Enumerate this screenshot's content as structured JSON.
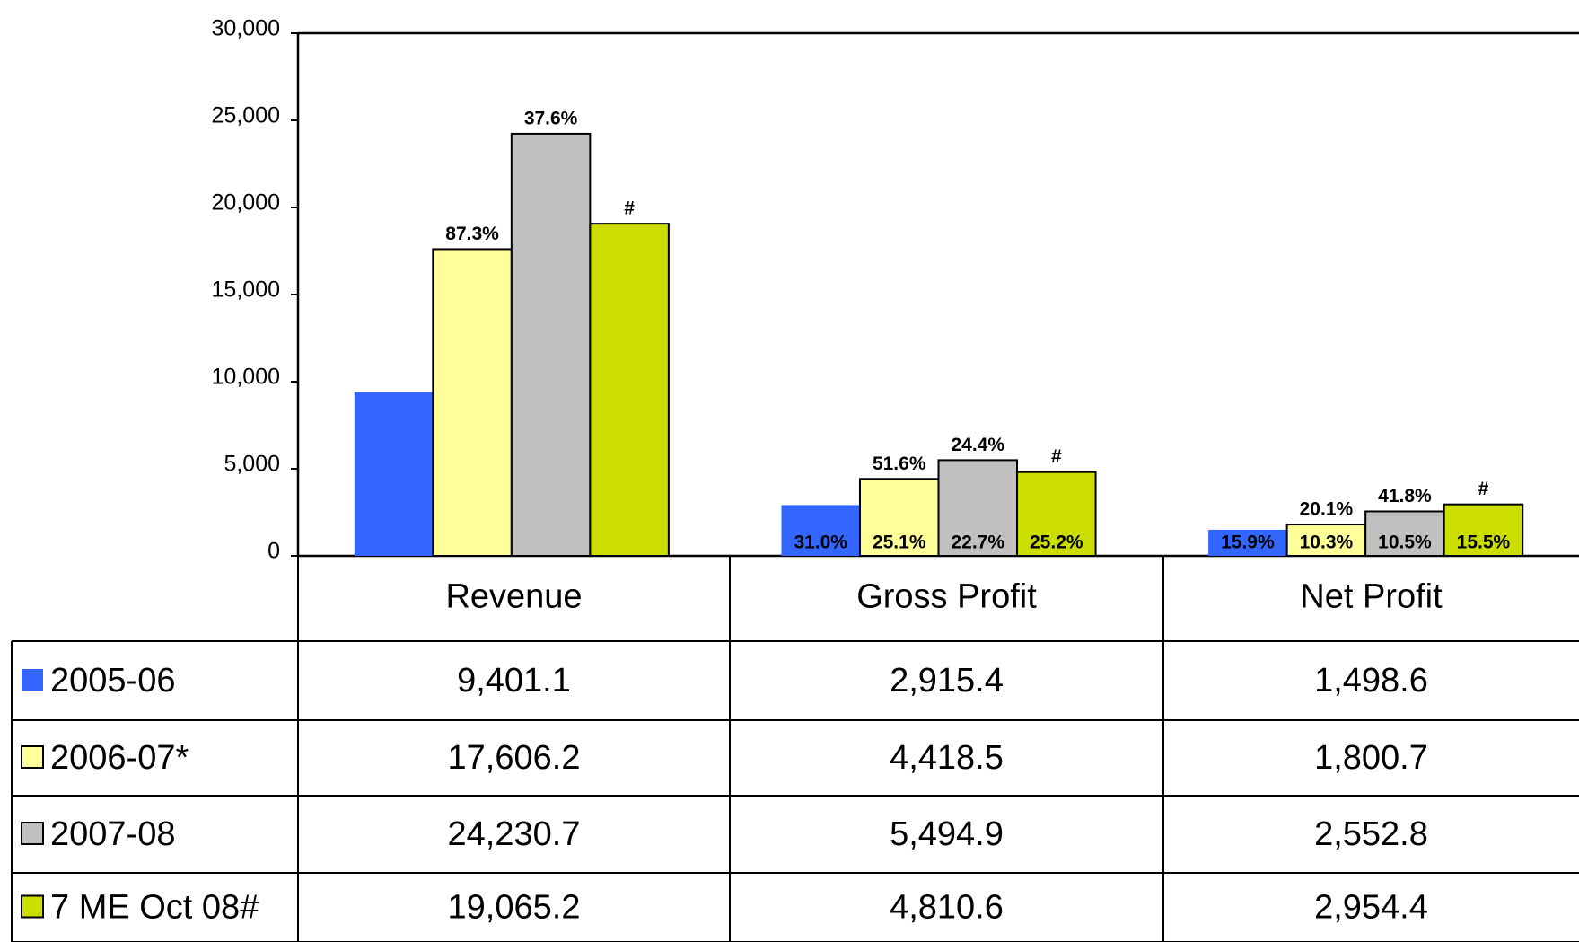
{
  "chart_data": {
    "type": "bar",
    "categories": [
      "Revenue",
      "Gross Profit",
      "Net Profit"
    ],
    "series": [
      {
        "name": "2005-06",
        "color": "#3366ff",
        "values": [
          9401.1,
          2915.4,
          1498.6
        ],
        "value_labels": [
          "9,401.1",
          "2,915.4",
          "1,498.6"
        ],
        "growth_labels": [
          null,
          null,
          null
        ],
        "margin_labels": [
          null,
          "31.0%",
          "15.9%"
        ]
      },
      {
        "name": "2006-07*",
        "color": "#ffff99",
        "values": [
          17606.2,
          4418.5,
          1800.7
        ],
        "value_labels": [
          "17,606.2",
          "4,418.5",
          "1,800.7"
        ],
        "growth_labels": [
          "87.3%",
          "51.6%",
          "20.1%"
        ],
        "margin_labels": [
          null,
          "25.1%",
          "10.3%"
        ]
      },
      {
        "name": "2007-08",
        "color": "#c0c0c0",
        "values": [
          24230.7,
          5494.9,
          2552.8
        ],
        "value_labels": [
          "24,230.7",
          "5,494.9",
          "2,552.8"
        ],
        "growth_labels": [
          "37.6%",
          "24.4%",
          "41.8%"
        ],
        "margin_labels": [
          null,
          "22.7%",
          "10.5%"
        ]
      },
      {
        "name": "7 ME Oct 08#",
        "color": "#ccdd00",
        "values": [
          19065.2,
          4810.6,
          2954.4
        ],
        "value_labels": [
          "19,065.2",
          "4,810.6",
          "2,954.4"
        ],
        "growth_labels": [
          "#",
          "#",
          "#"
        ],
        "margin_labels": [
          null,
          "25.2%",
          "15.5%"
        ]
      }
    ],
    "ylim": [
      0,
      30000
    ],
    "yticks": [
      0,
      {
        "value": 5000,
        "label": "5,000"
      },
      {
        "value": 10000,
        "label": "10,000"
      },
      {
        "value": 15000,
        "label": "15,000"
      },
      {
        "value": 20000,
        "label": "20,000"
      },
      {
        "value": 25000,
        "label": "25,000"
      },
      {
        "value": 30000,
        "label": "30,000"
      }
    ],
    "grid": false
  }
}
